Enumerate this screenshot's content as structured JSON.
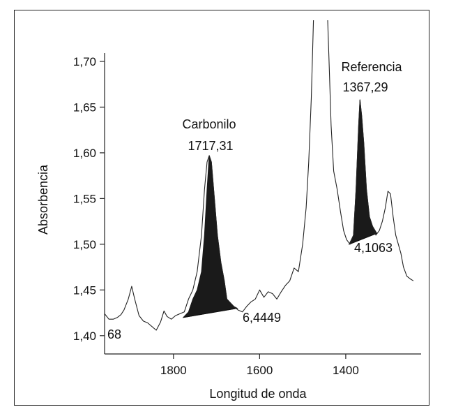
{
  "chart_data": {
    "type": "line",
    "xlabel": "Longitud de onda",
    "ylabel": "Absorbencia",
    "xlim": [
      1960,
      1225
    ],
    "ylim": [
      1.38,
      1.745
    ],
    "x_ticks": [
      1800,
      1600,
      1400
    ],
    "x_tick_labels": [
      "1800",
      "1600",
      "1400"
    ],
    "y_ticks": [
      1.4,
      1.45,
      1.5,
      1.55,
      1.6,
      1.65,
      1.7
    ],
    "y_tick_labels": [
      "1,40",
      "1,45",
      "1,50",
      "1,55",
      "1,60",
      "1,65",
      "1,70"
    ],
    "grid": false,
    "series": [
      {
        "x": [
          1960,
          1950,
          1940,
          1930,
          1922,
          1915,
          1905,
          1897,
          1890,
          1880,
          1870,
          1860,
          1850,
          1840,
          1830,
          1822,
          1815,
          1805,
          1795,
          1785,
          1775,
          1765,
          1755,
          1745,
          1735,
          1728,
          1722,
          1717,
          1712,
          1705,
          1698,
          1690,
          1682,
          1676,
          1670,
          1660,
          1650,
          1640,
          1630,
          1620,
          1610,
          1600,
          1590,
          1580,
          1570,
          1560,
          1550,
          1540,
          1530,
          1520,
          1510,
          1500,
          1492,
          1486,
          1480,
          1475
        ],
        "y": [
          1.424,
          1.418,
          1.418,
          1.42,
          1.423,
          1.428,
          1.44,
          1.454,
          1.44,
          1.422,
          1.416,
          1.414,
          1.41,
          1.406,
          1.415,
          1.427,
          1.421,
          1.418,
          1.422,
          1.424,
          1.426,
          1.44,
          1.45,
          1.47,
          1.51,
          1.56,
          1.59,
          1.597,
          1.59,
          1.55,
          1.51,
          1.48,
          1.46,
          1.44,
          1.437,
          1.432,
          1.428,
          1.426,
          1.432,
          1.437,
          1.44,
          1.45,
          1.442,
          1.448,
          1.446,
          1.44,
          1.448,
          1.455,
          1.46,
          1.474,
          1.47,
          1.5,
          1.54,
          1.59,
          1.66,
          1.745
        ]
      },
      {
        "x": [
          1442,
          1438,
          1434,
          1428,
          1420,
          1412,
          1405,
          1398,
          1390,
          1382,
          1376,
          1370,
          1367,
          1363,
          1358,
          1352,
          1345,
          1338,
          1330,
          1322,
          1315,
          1308,
          1302,
          1296,
          1290,
          1284,
          1278,
          1272,
          1266,
          1258,
          1250,
          1243
        ],
        "y": [
          1.745,
          1.69,
          1.63,
          1.58,
          1.56,
          1.535,
          1.515,
          1.505,
          1.5,
          1.51,
          1.56,
          1.63,
          1.658,
          1.64,
          1.61,
          1.56,
          1.53,
          1.52,
          1.51,
          1.515,
          1.525,
          1.54,
          1.558,
          1.555,
          1.53,
          1.51,
          1.5,
          1.49,
          1.475,
          1.465,
          1.462,
          1.46
        ]
      }
    ],
    "shaded_peaks": [
      {
        "x": [
          1777,
          1765,
          1755,
          1745,
          1735,
          1728,
          1722,
          1717,
          1712,
          1705,
          1698,
          1690,
          1682,
          1676,
          1670,
          1660,
          1652
        ],
        "y": [
          1.42,
          1.426,
          1.44,
          1.45,
          1.47,
          1.51,
          1.56,
          1.597,
          1.59,
          1.55,
          1.51,
          1.48,
          1.46,
          1.44,
          1.437,
          1.432,
          1.43
        ],
        "baseline": [
          [
            1777,
            1.42
          ],
          [
            1652,
            1.43
          ]
        ]
      },
      {
        "x": [
          1392,
          1382,
          1376,
          1370,
          1367,
          1363,
          1358,
          1352,
          1345,
          1338,
          1328
        ],
        "y": [
          1.5,
          1.51,
          1.56,
          1.63,
          1.658,
          1.64,
          1.61,
          1.56,
          1.53,
          1.52,
          1.512
        ],
        "baseline": [
          [
            1392,
            1.5
          ],
          [
            1328,
            1.512
          ]
        ]
      }
    ],
    "annotations": {
      "carbonilo_title": "Carbonilo",
      "carbonilo_value": "1717,31",
      "carbonilo_area": "6,4449",
      "referencia_title": "Referencia",
      "referencia_value": "1367,29",
      "referencia_area": "4,1063",
      "left_value": "68"
    },
    "colors": {
      "line": "#222222",
      "fill": "#1a1a1a"
    }
  }
}
